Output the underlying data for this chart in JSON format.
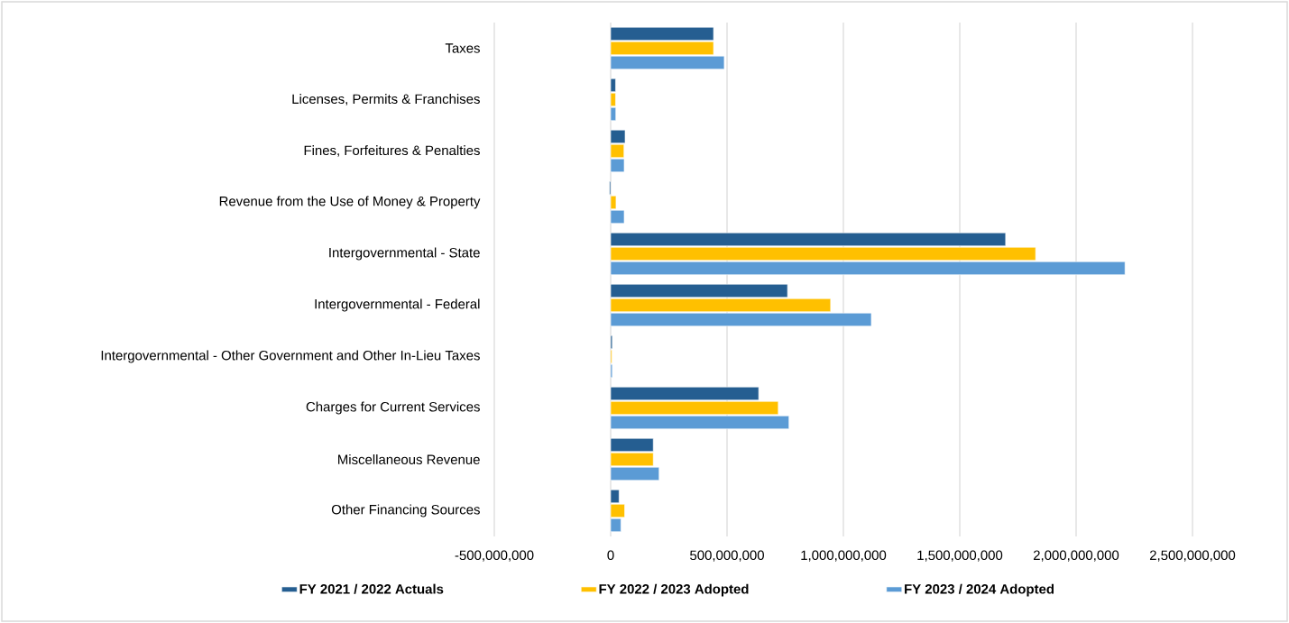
{
  "chart_data": {
    "type": "bar",
    "orientation": "horizontal",
    "categories": [
      "Taxes",
      "Licenses, Permits & Franchises",
      "Fines, Forfeitures & Penalties",
      "Revenue from the Use of Money & Property",
      "Intergovernmental - State",
      "Intergovernmental - Federal",
      "Intergovernmental - Other Government and Other In-Lieu Taxes",
      "Charges for Current Services",
      "Miscellaneous Revenue",
      "Other Financing Sources"
    ],
    "series": [
      {
        "name": "FY 2021 / 2022 Actuals",
        "color": "#255e91",
        "values": [
          442000000,
          21000000,
          62000000,
          -5000000,
          1697000000,
          760000000,
          7000000,
          636000000,
          183000000,
          36000000
        ]
      },
      {
        "name": "FY 2022 / 2023 Adopted",
        "color": "#ffc000",
        "values": [
          442000000,
          21000000,
          57000000,
          23000000,
          1826000000,
          945000000,
          5000000,
          720000000,
          183000000,
          60000000
        ]
      },
      {
        "name": "FY 2023 / 2024 Adopted",
        "color": "#5b9bd5",
        "values": [
          488000000,
          22000000,
          58000000,
          58000000,
          2210000000,
          1120000000,
          7000000,
          766000000,
          208000000,
          44000000
        ]
      }
    ],
    "xlim": [
      -500000000,
      2500000000
    ],
    "xticks": [
      {
        "value": -500000000,
        "label": "-500,000,000"
      },
      {
        "value": 0,
        "label": "0"
      },
      {
        "value": 500000000,
        "label": "500,000,000"
      },
      {
        "value": 1000000000,
        "label": "1,000,000,000"
      },
      {
        "value": 1500000000,
        "label": "1,500,000,000"
      },
      {
        "value": 2000000000,
        "label": "2,000,000,000"
      },
      {
        "value": 2500000000,
        "label": "2,500,000,000"
      }
    ],
    "grid": "x",
    "legend": "bottom"
  }
}
